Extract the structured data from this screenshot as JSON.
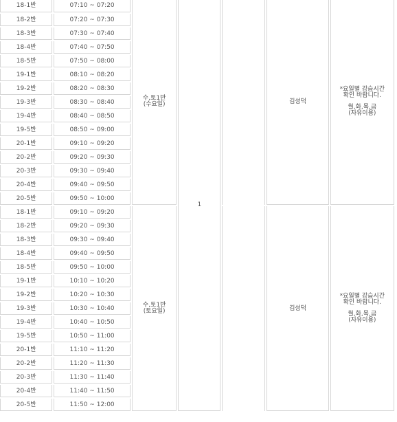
{
  "schedule": {
    "block1": {
      "rows": [
        {
          "class": "18-1반",
          "time": "07:10 ~ 07:20"
        },
        {
          "class": "18-2반",
          "time": "07:20 ~ 07:30"
        },
        {
          "class": "18-3반",
          "time": "07:30 ~ 07:40"
        },
        {
          "class": "18-4반",
          "time": "07:40 ~ 07:50"
        },
        {
          "class": "18-5반",
          "time": "07:50 ~ 08:00"
        },
        {
          "class": "19-1반",
          "time": "08:10 ~ 08:20"
        },
        {
          "class": "19-2반",
          "time": "08:20 ~ 08:30"
        },
        {
          "class": "19-3반",
          "time": "08:30 ~ 08:40"
        },
        {
          "class": "19-4반",
          "time": "08:40 ~ 08:50"
        },
        {
          "class": "19-5반",
          "time": "08:50 ~ 09:00"
        },
        {
          "class": "20-1반",
          "time": "09:10 ~ 09:20"
        },
        {
          "class": "20-2반",
          "time": "09:20 ~ 09:30"
        },
        {
          "class": "20-3반",
          "time": "09:30 ~ 09:40"
        },
        {
          "class": "20-4반",
          "time": "09:40 ~ 09:50"
        },
        {
          "class": "20-5반",
          "time": "09:50 ~ 10:00"
        }
      ],
      "group_line1": "수,토1반",
      "group_line2": "(수요일)",
      "teacher": "김성덕",
      "memo_line1": "*요일별 강습시간",
      "memo_line2": "확인 바랍니다.",
      "memo_line3": "월,화,목,금",
      "memo_line4": "(자유이용)"
    },
    "block2": {
      "rows": [
        {
          "class": "18-1반",
          "time": "09:10 ~ 09:20"
        },
        {
          "class": "18-2반",
          "time": "09:20 ~ 09:30"
        },
        {
          "class": "18-3반",
          "time": "09:30 ~ 09:40"
        },
        {
          "class": "18-4반",
          "time": "09:40 ~ 09:50"
        },
        {
          "class": "18-5반",
          "time": "09:50 ~ 10:00"
        },
        {
          "class": "19-1반",
          "time": "10:10 ~ 10:20"
        },
        {
          "class": "19-2반",
          "time": "10:20 ~ 10:30"
        },
        {
          "class": "19-3반",
          "time": "10:30 ~ 10:40"
        },
        {
          "class": "19-4반",
          "time": "10:40 ~ 10:50"
        },
        {
          "class": "19-5반",
          "time": "10:50 ~ 11:00"
        },
        {
          "class": "20-1반",
          "time": "11:10 ~ 11:20"
        },
        {
          "class": "20-2반",
          "time": "11:20 ~ 11:30"
        },
        {
          "class": "20-3반",
          "time": "11:30 ~ 11:40"
        },
        {
          "class": "20-4반",
          "time": "11:40 ~ 11:50"
        },
        {
          "class": "20-5반",
          "time": "11:50 ~ 12:00"
        }
      ],
      "group_line1": "수,토1반",
      "group_line2": "(토요일)",
      "teacher": "김성덕",
      "memo_line1": "*요일별 강습시간",
      "memo_line2": "확인 바랍니다.",
      "memo_line3": "월,화,목,금",
      "memo_line4": "(자유이용)"
    },
    "shared_count": "1"
  },
  "colors": {
    "text": "#555555",
    "border": "#d6d6d6",
    "background": "#ffffff"
  }
}
